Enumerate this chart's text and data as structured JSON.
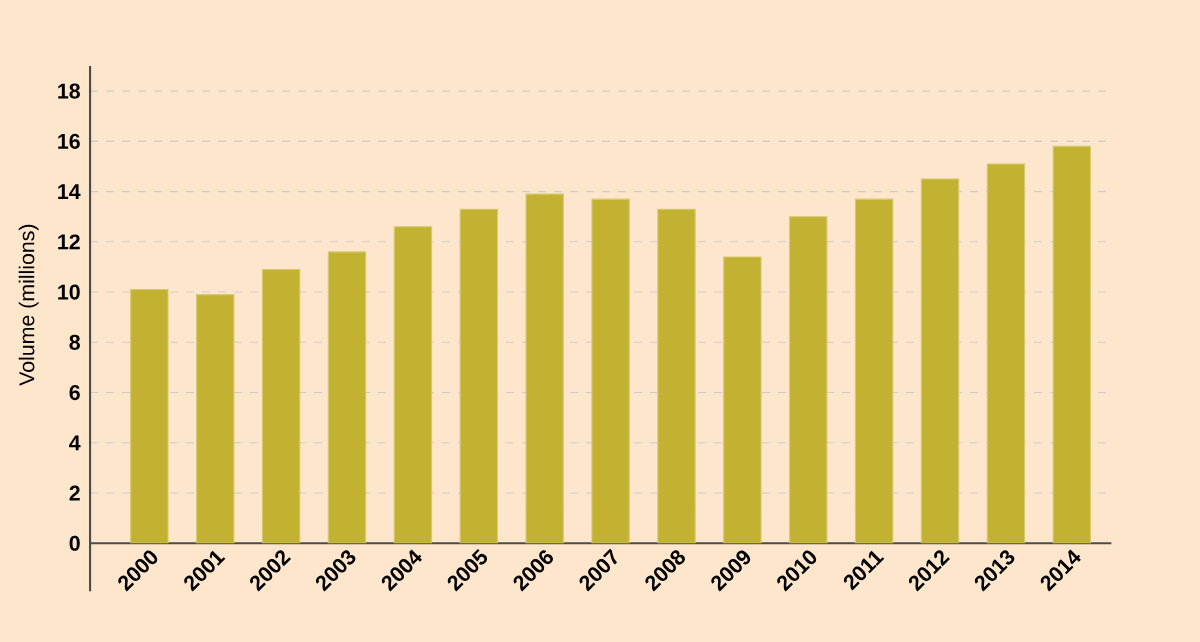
{
  "chart_data": {
    "type": "bar",
    "ylabel": "Volume (millions)",
    "categories": [
      "2000",
      "2001",
      "2002",
      "2003",
      "2004",
      "2005",
      "2006",
      "2007",
      "2008",
      "2009",
      "2010",
      "2011",
      "2012",
      "2013",
      "2014"
    ],
    "values": [
      10.1,
      9.9,
      10.9,
      11.6,
      12.6,
      13.3,
      13.9,
      13.7,
      13.3,
      11.4,
      13.0,
      13.7,
      14.5,
      15.1,
      15.8
    ],
    "color": "#c3b232",
    "ylim": [
      0,
      19
    ],
    "yticks": [
      0,
      2,
      4,
      6,
      8,
      10,
      12,
      14,
      16,
      18
    ],
    "grid": "y"
  }
}
